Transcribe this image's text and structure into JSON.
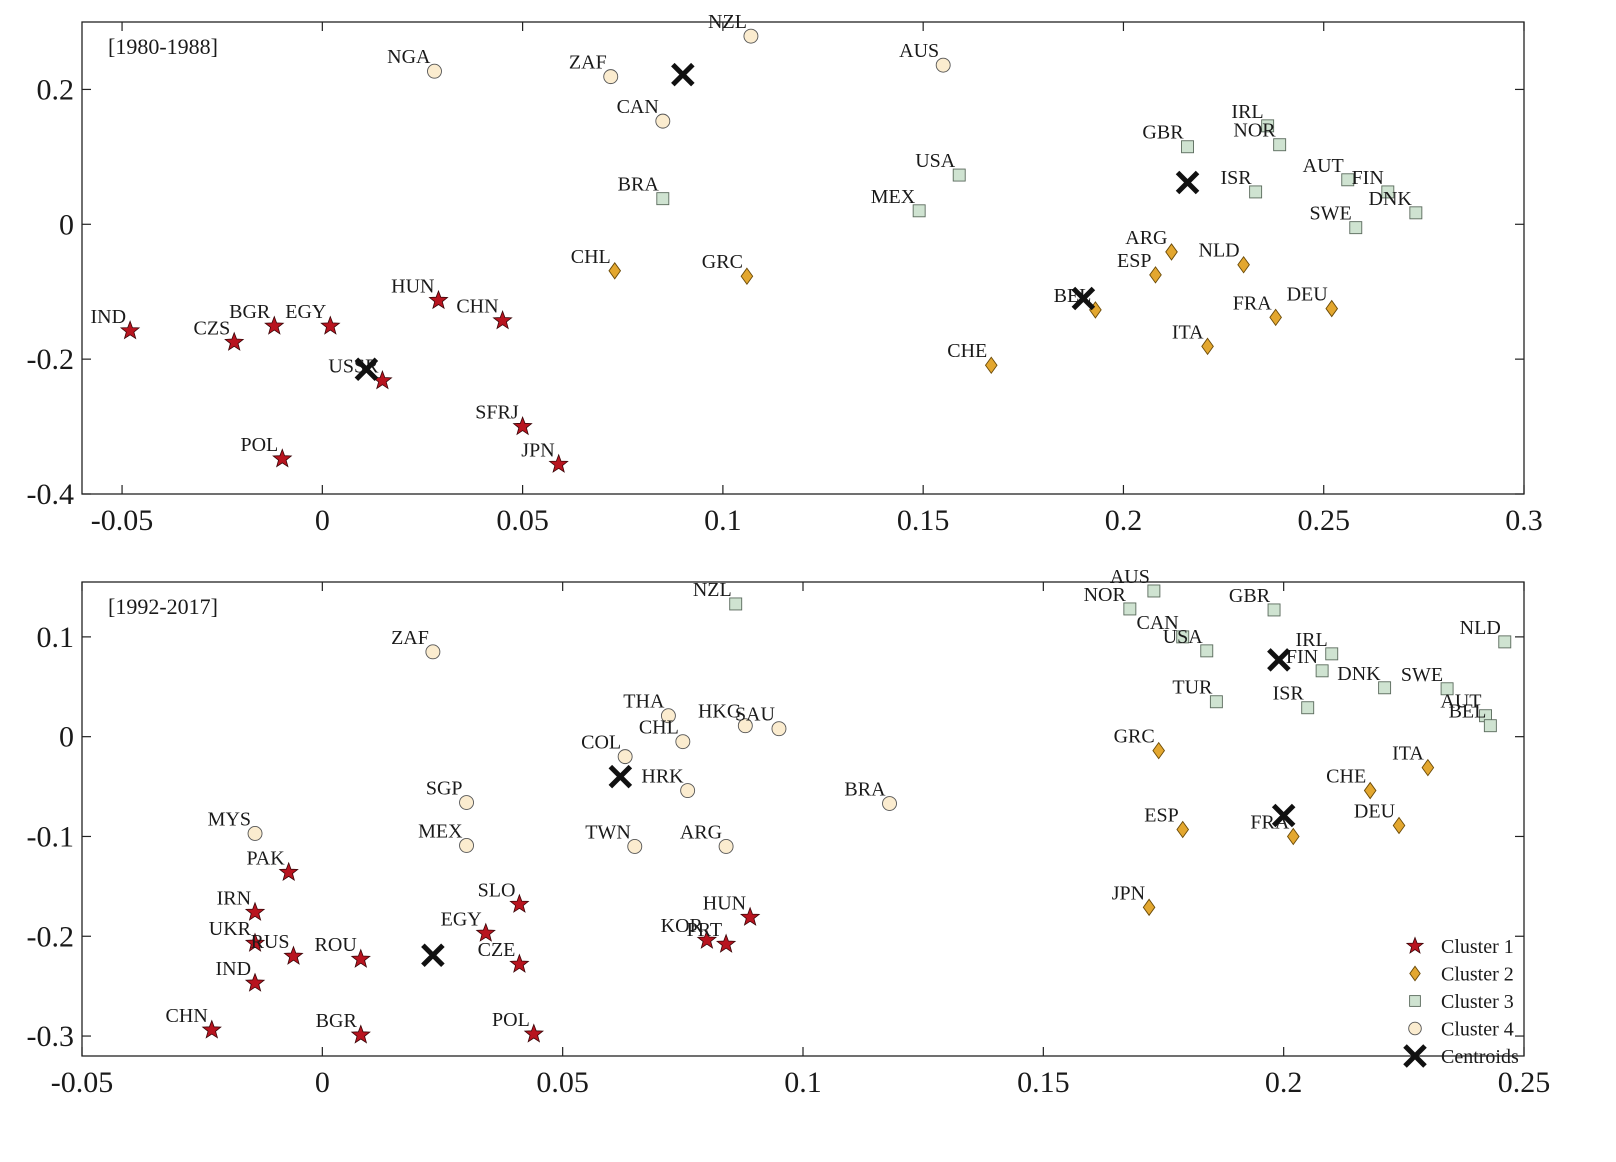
{
  "colors": {
    "cluster1": "#b8141f",
    "cluster2": "#e3a72f",
    "cluster3": "#cfe3d1",
    "cluster4": "#fbeccf",
    "centroid": "#111111"
  },
  "legend": [
    {
      "label": "Cluster 1",
      "marker": "star",
      "color": "#b8141f"
    },
    {
      "label": "Cluster 2",
      "marker": "diamond",
      "color": "#e3a72f"
    },
    {
      "label": "Cluster 3",
      "marker": "square",
      "color": "#cfe3d1"
    },
    {
      "label": "Cluster 4",
      "marker": "circle",
      "color": "#fbeccf"
    },
    {
      "label": "Centroids",
      "marker": "x",
      "color": "#111111"
    }
  ],
  "chart_data": [
    {
      "type": "scatter",
      "title": "[1980-1988]",
      "xlim": [
        -0.06,
        0.3
      ],
      "ylim": [
        -0.4,
        0.3
      ],
      "xticks": [
        -0.05,
        0,
        0.05,
        0.1,
        0.15,
        0.2,
        0.25,
        0.3
      ],
      "xtick_labels": [
        "-0.05",
        "0",
        "0.05",
        "0.1",
        "0.15",
        "0.2",
        "0.25",
        "0.3"
      ],
      "yticks": [
        -0.4,
        -0.2,
        0,
        0.2
      ],
      "ytick_labels": [
        "-0.4",
        "-0.2",
        "0",
        "0.2"
      ],
      "legend": false,
      "points": [
        {
          "label": "IND",
          "x": -0.048,
          "y": -0.158,
          "cluster": 1
        },
        {
          "label": "CZS",
          "x": -0.022,
          "y": -0.175,
          "cluster": 1
        },
        {
          "label": "BGR",
          "x": -0.012,
          "y": -0.151,
          "cluster": 1
        },
        {
          "label": "EGY",
          "x": 0.002,
          "y": -0.151,
          "cluster": 1
        },
        {
          "label": "HUN",
          "x": 0.029,
          "y": -0.113,
          "cluster": 1
        },
        {
          "label": "CHN",
          "x": 0.045,
          "y": -0.143,
          "cluster": 1
        },
        {
          "label": "USSR",
          "x": 0.015,
          "y": -0.232,
          "cluster": 1
        },
        {
          "label": "POL",
          "x": -0.01,
          "y": -0.348,
          "cluster": 1
        },
        {
          "label": "SFRJ",
          "x": 0.05,
          "y": -0.3,
          "cluster": 1
        },
        {
          "label": "JPN",
          "x": 0.059,
          "y": -0.356,
          "cluster": 1
        },
        {
          "label": "CHL",
          "x": 0.073,
          "y": -0.069,
          "cluster": 2
        },
        {
          "label": "GRC",
          "x": 0.106,
          "y": -0.077,
          "cluster": 2
        },
        {
          "label": "CHE",
          "x": 0.167,
          "y": -0.209,
          "cluster": 2
        },
        {
          "label": "BEL",
          "x": 0.193,
          "y": -0.127,
          "cluster": 2
        },
        {
          "label": "ARG",
          "x": 0.212,
          "y": -0.041,
          "cluster": 2
        },
        {
          "label": "ESP",
          "x": 0.208,
          "y": -0.075,
          "cluster": 2
        },
        {
          "label": "NLD",
          "x": 0.23,
          "y": -0.06,
          "cluster": 2
        },
        {
          "label": "FRA",
          "x": 0.238,
          "y": -0.138,
          "cluster": 2
        },
        {
          "label": "ITA",
          "x": 0.221,
          "y": -0.181,
          "cluster": 2
        },
        {
          "label": "DEU",
          "x": 0.252,
          "y": -0.125,
          "cluster": 2
        },
        {
          "label": "BRA",
          "x": 0.085,
          "y": 0.038,
          "cluster": 3
        },
        {
          "label": "USA",
          "x": 0.159,
          "y": 0.073,
          "cluster": 3
        },
        {
          "label": "MEX",
          "x": 0.149,
          "y": 0.02,
          "cluster": 3
        },
        {
          "label": "GBR",
          "x": 0.216,
          "y": 0.115,
          "cluster": 3
        },
        {
          "label": "IRL",
          "x": 0.236,
          "y": 0.146,
          "cluster": 3
        },
        {
          "label": "NOR",
          "x": 0.239,
          "y": 0.118,
          "cluster": 3
        },
        {
          "label": "ISR",
          "x": 0.233,
          "y": 0.048,
          "cluster": 3
        },
        {
          "label": "AUT",
          "x": 0.256,
          "y": 0.066,
          "cluster": 3
        },
        {
          "label": "FIN",
          "x": 0.266,
          "y": 0.048,
          "cluster": 3
        },
        {
          "label": "SWE",
          "x": 0.258,
          "y": -0.005,
          "cluster": 3
        },
        {
          "label": "DNK",
          "x": 0.273,
          "y": 0.017,
          "cluster": 3
        },
        {
          "label": "NGA",
          "x": 0.028,
          "y": 0.227,
          "cluster": 4
        },
        {
          "label": "ZAF",
          "x": 0.072,
          "y": 0.219,
          "cluster": 4
        },
        {
          "label": "CAN",
          "x": 0.085,
          "y": 0.153,
          "cluster": 4
        },
        {
          "label": "NZL",
          "x": 0.107,
          "y": 0.279,
          "cluster": 4
        },
        {
          "label": "AUS",
          "x": 0.155,
          "y": 0.236,
          "cluster": 4
        }
      ],
      "centroids": [
        {
          "x": 0.011,
          "y": -0.215
        },
        {
          "x": 0.09,
          "y": 0.222
        },
        {
          "x": 0.216,
          "y": 0.062
        },
        {
          "x": 0.19,
          "y": -0.11
        }
      ]
    },
    {
      "type": "scatter",
      "title": "[1992-2017]",
      "xlim": [
        -0.05,
        0.25
      ],
      "ylim": [
        -0.32,
        0.155
      ],
      "xticks": [
        -0.05,
        0,
        0.05,
        0.1,
        0.15,
        0.2,
        0.25
      ],
      "xtick_labels": [
        "-0.05",
        "0",
        "0.05",
        "0.1",
        "0.15",
        "0.2",
        "0.25"
      ],
      "yticks": [
        -0.3,
        -0.2,
        -0.1,
        0,
        0.1
      ],
      "ytick_labels": [
        "-0.3",
        "-0.2",
        "-0.1",
        "0",
        "0.1"
      ],
      "legend": true,
      "legend_position": "bottom-right",
      "points": [
        {
          "label": "PAK",
          "x": -0.007,
          "y": -0.136,
          "cluster": 1
        },
        {
          "label": "IRN",
          "x": -0.014,
          "y": -0.176,
          "cluster": 1
        },
        {
          "label": "UKR",
          "x": -0.014,
          "y": -0.207,
          "cluster": 1
        },
        {
          "label": "RUS",
          "x": -0.006,
          "y": -0.22,
          "cluster": 1
        },
        {
          "label": "ROU",
          "x": 0.008,
          "y": -0.223,
          "cluster": 1
        },
        {
          "label": "IND",
          "x": -0.014,
          "y": -0.247,
          "cluster": 1
        },
        {
          "label": "CHN",
          "x": -0.023,
          "y": -0.294,
          "cluster": 1
        },
        {
          "label": "BGR",
          "x": 0.008,
          "y": -0.299,
          "cluster": 1
        },
        {
          "label": "SLO",
          "x": 0.041,
          "y": -0.168,
          "cluster": 1
        },
        {
          "label": "EGY",
          "x": 0.034,
          "y": -0.197,
          "cluster": 1
        },
        {
          "label": "CZE",
          "x": 0.041,
          "y": -0.228,
          "cluster": 1
        },
        {
          "label": "POL",
          "x": 0.044,
          "y": -0.298,
          "cluster": 1
        },
        {
          "label": "HUN",
          "x": 0.089,
          "y": -0.181,
          "cluster": 1
        },
        {
          "label": "KOR",
          "x": 0.08,
          "y": -0.204,
          "cluster": 1
        },
        {
          "label": "PRT",
          "x": 0.084,
          "y": -0.208,
          "cluster": 1
        },
        {
          "label": "GRC",
          "x": 0.174,
          "y": -0.014,
          "cluster": 2
        },
        {
          "label": "ESP",
          "x": 0.179,
          "y": -0.093,
          "cluster": 2
        },
        {
          "label": "JPN",
          "x": 0.172,
          "y": -0.171,
          "cluster": 2
        },
        {
          "label": "FRA",
          "x": 0.202,
          "y": -0.1,
          "cluster": 2
        },
        {
          "label": "CHE",
          "x": 0.218,
          "y": -0.054,
          "cluster": 2
        },
        {
          "label": "DEU",
          "x": 0.224,
          "y": -0.089,
          "cluster": 2
        },
        {
          "label": "ITA",
          "x": 0.23,
          "y": -0.031,
          "cluster": 2
        },
        {
          "label": "NZL",
          "x": 0.086,
          "y": 0.133,
          "cluster": 3
        },
        {
          "label": "NOR",
          "x": 0.168,
          "y": 0.128,
          "cluster": 3
        },
        {
          "label": "AUS",
          "x": 0.173,
          "y": 0.146,
          "cluster": 3
        },
        {
          "label": "CAN",
          "x": 0.179,
          "y": 0.1,
          "cluster": 3
        },
        {
          "label": "USA",
          "x": 0.184,
          "y": 0.086,
          "cluster": 3
        },
        {
          "label": "GBR",
          "x": 0.198,
          "y": 0.127,
          "cluster": 3
        },
        {
          "label": "TUR",
          "x": 0.186,
          "y": 0.035,
          "cluster": 3
        },
        {
          "label": "IRL",
          "x": 0.21,
          "y": 0.083,
          "cluster": 3
        },
        {
          "label": "FIN",
          "x": 0.208,
          "y": 0.066,
          "cluster": 3
        },
        {
          "label": "ISR",
          "x": 0.205,
          "y": 0.029,
          "cluster": 3
        },
        {
          "label": "DNK",
          "x": 0.221,
          "y": 0.049,
          "cluster": 3
        },
        {
          "label": "SWE",
          "x": 0.234,
          "y": 0.048,
          "cluster": 3
        },
        {
          "label": "AUT",
          "x": 0.242,
          "y": 0.021,
          "cluster": 3
        },
        {
          "label": "BEL",
          "x": 0.243,
          "y": 0.011,
          "cluster": 3
        },
        {
          "label": "NLD",
          "x": 0.246,
          "y": 0.095,
          "cluster": 3
        },
        {
          "label": "ZAF",
          "x": 0.023,
          "y": 0.085,
          "cluster": 4
        },
        {
          "label": "THA",
          "x": 0.072,
          "y": 0.021,
          "cluster": 4
        },
        {
          "label": "HKG",
          "x": 0.088,
          "y": 0.011,
          "cluster": 4
        },
        {
          "label": "SAU",
          "x": 0.095,
          "y": 0.008,
          "cluster": 4
        },
        {
          "label": "COL",
          "x": 0.063,
          "y": -0.02,
          "cluster": 4
        },
        {
          "label": "CHL",
          "x": 0.075,
          "y": -0.005,
          "cluster": 4
        },
        {
          "label": "HRK",
          "x": 0.076,
          "y": -0.054,
          "cluster": 4
        },
        {
          "label": "SGP",
          "x": 0.03,
          "y": -0.066,
          "cluster": 4
        },
        {
          "label": "MEX",
          "x": 0.03,
          "y": -0.109,
          "cluster": 4
        },
        {
          "label": "MYS",
          "x": -0.014,
          "y": -0.097,
          "cluster": 4
        },
        {
          "label": "TWN",
          "x": 0.065,
          "y": -0.11,
          "cluster": 4
        },
        {
          "label": "ARG",
          "x": 0.084,
          "y": -0.11,
          "cluster": 4
        },
        {
          "label": "BRA",
          "x": 0.118,
          "y": -0.067,
          "cluster": 4
        }
      ],
      "centroids": [
        {
          "x": 0.062,
          "y": -0.04
        },
        {
          "x": 0.023,
          "y": -0.219
        },
        {
          "x": 0.199,
          "y": 0.077
        },
        {
          "x": 0.2,
          "y": -0.079
        }
      ]
    }
  ]
}
